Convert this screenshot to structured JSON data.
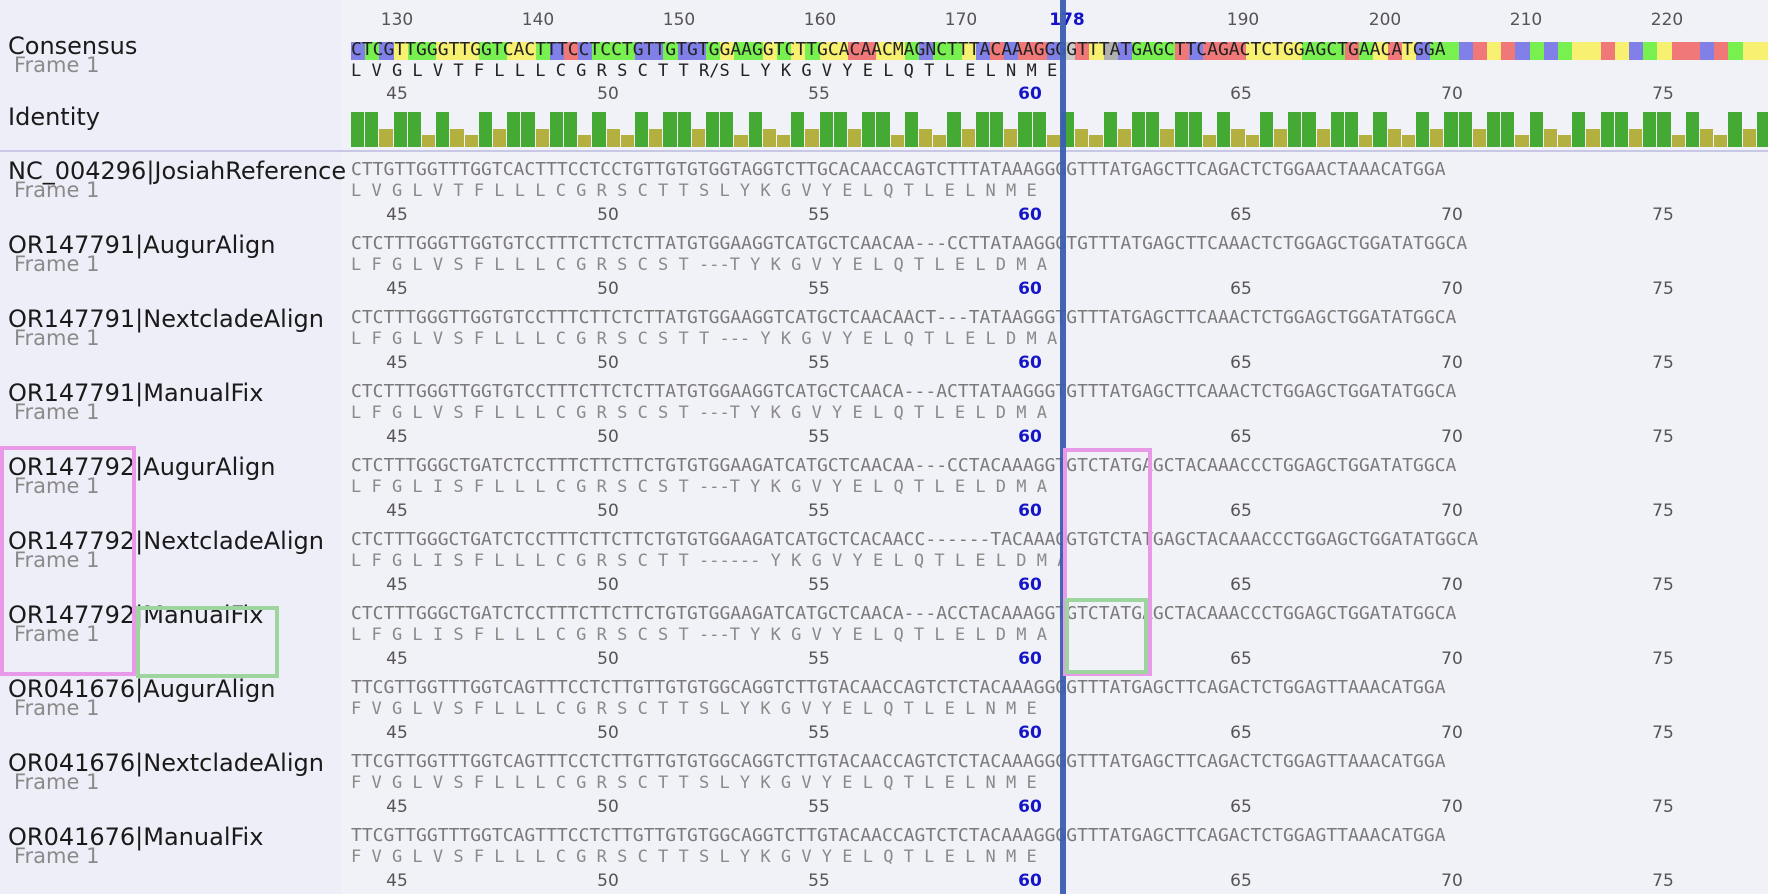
{
  "consensus": {
    "label": "Consensus",
    "frame_label": "Frame 1",
    "ruler_ticks": [
      "130",
      "140",
      "150",
      "160",
      "170",
      "178",
      "190",
      "200",
      "210",
      "220"
    ],
    "sequence": "CTCGTTGGGTTGGTCACTTTCCTCCTGTTGTGTGGAAGGTCTTGCACAACMAGNCTTTACAAAGGGGTTTATGAGCTTCAGACTCTGGAGCTGAACATGGA",
    "translation": "L V G L V T F L L L C G R S C T T R/S L Y K G V Y E L Q T L E L N M E",
    "aa_ticks": [
      "45",
      "50",
      "55",
      "60",
      "65",
      "70",
      "75"
    ]
  },
  "identity": {
    "label": "Identity"
  },
  "rows": [
    {
      "label": "NC_004296|JosiahReference",
      "frame_label": "Frame 1",
      "sequence": "CTTGTTGGTTTGGTCACTTTCCTCCTGTTGTGTGGTAGGTCTTGCACAACCAGTCTTTATAAAGGGGTTTATGAGCTTCAGACTCTGGAACTAAACATGGA",
      "translation": "L V G L V T F L L L C G R S C T T S L Y K G V Y E L Q T L E L N M E",
      "aa_ticks": [
        "45",
        "50",
        "55",
        "60",
        "65",
        "70",
        "75"
      ]
    },
    {
      "label": "OR147791|AugurAlign",
      "frame_label": "Frame 1",
      "sequence": "CTCTTTGGGTTGGTGTCCTTTCTTCTCTTATGTGGAAGGTCATGCTCAACAA---CCTTATAAGGGTGTTTATGAGCTTCAAACTCTGGAGCTGGATATGGCA",
      "translation": "L F G L V S F L L L C G R S C S T ---T Y K G V Y E L Q T L E L D M A",
      "aa_ticks": [
        "45",
        "50",
        "55",
        "60",
        "65",
        "70",
        "75"
      ]
    },
    {
      "label": "OR147791|NextcladeAlign",
      "frame_label": "Frame 1",
      "sequence": "CTCTTTGGGTTGGTGTCCTTTCTTCTCTTATGTGGAAGGTCATGCTCAACAACT---TATAAGGGTGTTTATGAGCTTCAAACTCTGGAGCTGGATATGGCA",
      "translation": "L F G L V S F L L L C G R S C S T T --- Y K G V Y E L Q T L E L D M A",
      "aa_ticks": [
        "45",
        "50",
        "55",
        "60",
        "65",
        "70",
        "75"
      ]
    },
    {
      "label": "OR147791|ManualFix",
      "frame_label": "Frame 1",
      "sequence": "CTCTTTGGGTTGGTGTCCTTTCTTCTCTTATGTGGAAGGTCATGCTCAACA---ACTTATAAGGGTGTTTATGAGCTTCAAACTCTGGAGCTGGATATGGCA",
      "translation": "L F G L V S F L L L C G R S C S T ---T Y K G V Y E L Q T L E L D M A",
      "aa_ticks": [
        "45",
        "50",
        "55",
        "60",
        "65",
        "70",
        "75"
      ]
    },
    {
      "label": "OR147792|AugurAlign",
      "frame_label": "Frame 1",
      "sequence": "CTCTTTGGGCTGATCTCCTTTCTTCTTCTGTGTGGAAGATCATGCTCAACAA---CCTACAAAGGTGTCTATGAGCTACAAACCCTGGAGCTGGATATGGCA",
      "translation": "L F G L I S F L L L C G R S C S T ---T Y K G V Y E L Q T L E L D M A",
      "aa_ticks": [
        "45",
        "50",
        "55",
        "60",
        "65",
        "70",
        "75"
      ]
    },
    {
      "label": "OR147792|NextcladeAlign",
      "frame_label": "Frame 1",
      "sequence": "CTCTTTGGGCTGATCTCCTTTCTTCTTCTGTGTGGAAGATCATGCTCACAACC------TACAAAGGTGTCTATGAGCTACAAACCCTGGAGCTGGATATGGCA",
      "translation": "L F G L I S F L L L C G R S C T T ------ Y K G V Y E L Q T L E L D M A",
      "aa_ticks": [
        "45",
        "50",
        "55",
        "60",
        "65",
        "70",
        "75"
      ]
    },
    {
      "label": "OR147792|ManualFix",
      "frame_label": "Frame 1",
      "sequence": "CTCTTTGGGCTGATCTCCTTTCTTCTTCTGTGTGGAAGATCATGCTCAACA---ACCTACAAAGGTGTCTATGAGCTACAAACCCTGGAGCTGGATATGGCA",
      "translation": "L F G L I S F L L L C G R S C S T ---T Y K G V Y E L Q T L E L D M A",
      "aa_ticks": [
        "45",
        "50",
        "55",
        "60",
        "65",
        "70",
        "75"
      ]
    },
    {
      "label": "OR041676|AugurAlign",
      "frame_label": "Frame 1",
      "sequence": "TTCGTTGGTTTGGTCAGTTTCCTCTTGTTGTGTGGCAGGTCTTGTACAACCAGTCTCTACAAAGGGGTTTATGAGCTTCAGACTCTGGAGTTAAACATGGA",
      "translation": "F V G L V S F L L L C G R S C T T S L Y K G V Y E L Q T L E L N M E",
      "aa_ticks": [
        "45",
        "50",
        "55",
        "60",
        "65",
        "70",
        "75"
      ]
    },
    {
      "label": "OR041676|NextcladeAlign",
      "frame_label": "Frame 1",
      "sequence": "TTCGTTGGTTTGGTCAGTTTCCTCTTGTTGTGTGGCAGGTCTTGTACAACCAGTCTCTACAAAGGGGTTTATGAGCTTCAGACTCTGGAGTTAAACATGGA",
      "translation": "F V G L V S F L L L C G R S C T T S L Y K G V Y E L Q T L E L N M E",
      "aa_ticks": [
        "45",
        "50",
        "55",
        "60",
        "65",
        "70",
        "75"
      ]
    },
    {
      "label": "OR041676|ManualFix",
      "frame_label": "Frame 1",
      "sequence": "TTCGTTGGTTTGGTCAGTTTCCTCTTGTTGTGTGGCAGGTCTTGTACAACCAGTCTCTACAAAGGGGTTTATGAGCTTCAGACTCTGGAGTTAAACATGGA",
      "translation": "F V G L V S F L L L C G R S C T T S L Y K G V Y E L Q T L E L N M E",
      "aa_ticks": [
        "45",
        "50",
        "55",
        "60",
        "65",
        "70",
        "75"
      ]
    }
  ],
  "colors": {
    "A": "#f07878",
    "C": "#8080e8",
    "G": "#f8f070",
    "T": "#78f050",
    "N": "#b0b0b0",
    "cursor": "#3a5db0",
    "box_pink": "#e89ae8",
    "box_green": "#9ed49e",
    "identity_high": "#44aa33",
    "identity_mid": "#b4b040",
    "identity_low": "#dd2222"
  }
}
